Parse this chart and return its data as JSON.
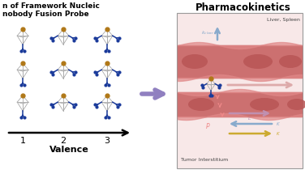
{
  "title_right": "Pharmacokinetics",
  "valence_label": "Valence",
  "valence_ticks": [
    "1",
    "2",
    "3"
  ],
  "big_arrow_color": "#9080c0",
  "bg_color": "#ffffff",
  "box_bg": "#f8e8e8",
  "liver_spleen_text": "Liver, Spleen",
  "tumor_text": "Tumor Interstitium",
  "node_color": "#b07818",
  "arm_color": "#1a3a9a",
  "wire_color": "#aaaaaa",
  "vessel_fill": "#cc7070",
  "vessel_ellipse": "#b85555",
  "gap_fill": "#f0d0d0",
  "arrow_blue_up": "#88aacc",
  "arrow_pink_right": "#ddaaaa",
  "arrow_pink_down": "#ee8888",
  "arrow_mauve": "#c090b0",
  "arrow_blue_left": "#88aacc",
  "arrow_yellow": "#ccaa30",
  "box_edge": "#999999",
  "text_color": "#444444"
}
